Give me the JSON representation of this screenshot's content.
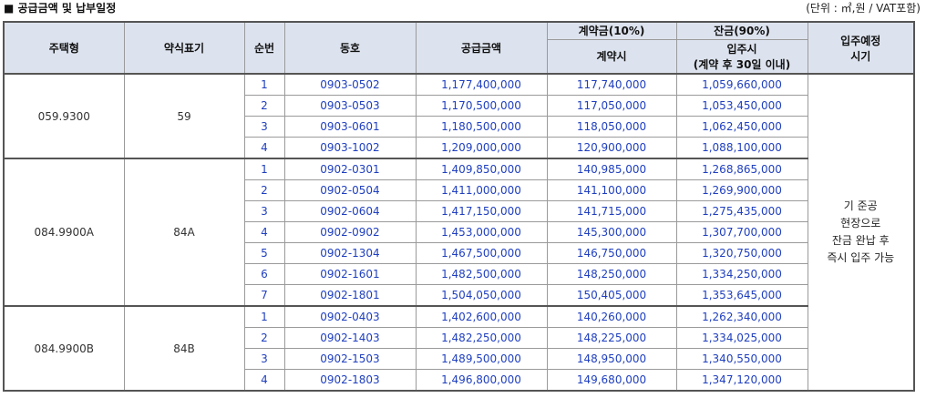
{
  "header": {
    "title": "■ 공급금액 및 납부일정",
    "unit": "(단위 : ㎡,원 / VAT포함)"
  },
  "columns": {
    "type": "주택형",
    "abbr": "약식표기",
    "order": "순번",
    "unit_no": "동호",
    "price": "공급금액",
    "deposit_group": "계약금(10%)",
    "deposit_sub": "계약시",
    "balance_group": "잔금(90%)",
    "balance_sub_1": "입주시",
    "balance_sub_2": "(계약 후 30일 이내)",
    "movein_1": "입주예정",
    "movein_2": "시기"
  },
  "movein_note": [
    "기 준공",
    "현장으로",
    "잔금 완납 후",
    "즉시 입주 가능"
  ],
  "groups": [
    {
      "type": "059.9300",
      "abbr": "59",
      "rows": [
        {
          "no": "1",
          "unit": "0903-0502",
          "price": "1,177,400,000",
          "deposit": "117,740,000",
          "balance": "1,059,660,000"
        },
        {
          "no": "2",
          "unit": "0903-0503",
          "price": "1,170,500,000",
          "deposit": "117,050,000",
          "balance": "1,053,450,000"
        },
        {
          "no": "3",
          "unit": "0903-0601",
          "price": "1,180,500,000",
          "deposit": "118,050,000",
          "balance": "1,062,450,000"
        },
        {
          "no": "4",
          "unit": "0903-1002",
          "price": "1,209,000,000",
          "deposit": "120,900,000",
          "balance": "1,088,100,000"
        }
      ]
    },
    {
      "type": "084.9900A",
      "abbr": "84A",
      "rows": [
        {
          "no": "1",
          "unit": "0902-0301",
          "price": "1,409,850,000",
          "deposit": "140,985,000",
          "balance": "1,268,865,000"
        },
        {
          "no": "2",
          "unit": "0902-0504",
          "price": "1,411,000,000",
          "deposit": "141,100,000",
          "balance": "1,269,900,000"
        },
        {
          "no": "3",
          "unit": "0902-0604",
          "price": "1,417,150,000",
          "deposit": "141,715,000",
          "balance": "1,275,435,000"
        },
        {
          "no": "4",
          "unit": "0902-0902",
          "price": "1,453,000,000",
          "deposit": "145,300,000",
          "balance": "1,307,700,000"
        },
        {
          "no": "5",
          "unit": "0902-1304",
          "price": "1,467,500,000",
          "deposit": "146,750,000",
          "balance": "1,320,750,000"
        },
        {
          "no": "6",
          "unit": "0902-1601",
          "price": "1,482,500,000",
          "deposit": "148,250,000",
          "balance": "1,334,250,000"
        },
        {
          "no": "7",
          "unit": "0902-1801",
          "price": "1,504,050,000",
          "deposit": "150,405,000",
          "balance": "1,353,645,000"
        }
      ]
    },
    {
      "type": "084.9900B",
      "abbr": "84B",
      "rows": [
        {
          "no": "1",
          "unit": "0902-0403",
          "price": "1,402,600,000",
          "deposit": "140,260,000",
          "balance": "1,262,340,000"
        },
        {
          "no": "2",
          "unit": "0902-1403",
          "price": "1,482,250,000",
          "deposit": "148,225,000",
          "balance": "1,334,025,000"
        },
        {
          "no": "3",
          "unit": "0902-1503",
          "price": "1,489,500,000",
          "deposit": "148,950,000",
          "balance": "1,340,550,000"
        },
        {
          "no": "4",
          "unit": "0902-1803",
          "price": "1,496,800,000",
          "deposit": "149,680,000",
          "balance": "1,347,120,000"
        }
      ]
    }
  ]
}
